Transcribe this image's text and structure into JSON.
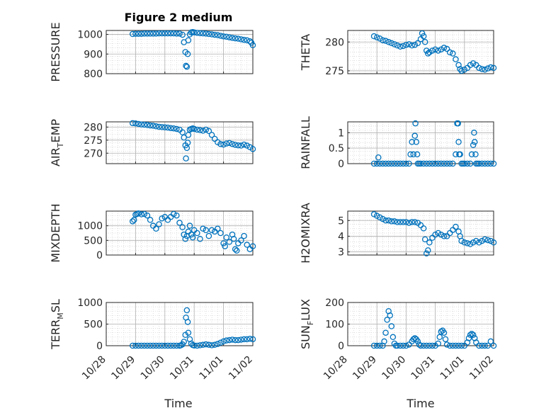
{
  "figure_title": "Figure 2 medium",
  "colors": {
    "marker": "#0072BD",
    "axis": "#262626",
    "grid": "#b0b0b0"
  },
  "chart_data": [
    {
      "type": "scatter",
      "ylabel": "PRESSURE",
      "ylim": [
        800,
        1020
      ],
      "yticks": [
        800,
        900,
        1000
      ],
      "xlim": [
        0,
        5
      ],
      "xticks": [],
      "grid": true,
      "x": [
        0.9,
        1.0,
        1.1,
        1.2,
        1.3,
        1.4,
        1.5,
        1.6,
        1.7,
        1.8,
        1.9,
        2.0,
        2.1,
        2.2,
        2.3,
        2.4,
        2.5,
        2.6,
        2.65,
        2.7,
        2.72,
        2.75,
        2.78,
        2.8,
        2.85,
        2.9,
        2.95,
        3.0,
        3.1,
        3.2,
        3.3,
        3.4,
        3.5,
        3.6,
        3.7,
        3.8,
        3.9,
        4.0,
        4.1,
        4.2,
        4.3,
        4.4,
        4.5,
        4.6,
        4.7,
        4.8,
        4.9,
        4.95,
        5.0
      ],
      "y": [
        1002,
        1003,
        1003,
        1003,
        1004,
        1004,
        1004,
        1004,
        1004,
        1005,
        1005,
        1005,
        1005,
        1005,
        1005,
        1004,
        1004,
        998,
        960,
        910,
        840,
        835,
        900,
        970,
        1000,
        1010,
        1012,
        1010,
        1008,
        1006,
        1005,
        1004,
        1002,
        1000,
        998,
        996,
        993,
        990,
        988,
        985,
        982,
        980,
        978,
        975,
        972,
        970,
        965,
        958,
        945
      ]
    },
    {
      "type": "scatter",
      "ylabel": "THETA",
      "ylim": [
        274.5,
        282
      ],
      "yticks": [
        275,
        280
      ],
      "xlim": [
        0,
        5
      ],
      "xticks": [],
      "grid": true,
      "x": [
        0.9,
        1.0,
        1.1,
        1.2,
        1.3,
        1.4,
        1.5,
        1.6,
        1.7,
        1.8,
        1.9,
        2.0,
        2.1,
        2.2,
        2.3,
        2.4,
        2.5,
        2.55,
        2.6,
        2.65,
        2.7,
        2.75,
        2.8,
        2.9,
        3.0,
        3.1,
        3.2,
        3.3,
        3.4,
        3.5,
        3.6,
        3.7,
        3.8,
        3.85,
        3.9,
        4.0,
        4.1,
        4.2,
        4.3,
        4.4,
        4.5,
        4.6,
        4.7,
        4.8,
        4.9,
        5.0
      ],
      "y": [
        281,
        280.8,
        280.6,
        280.3,
        280.2,
        280.0,
        279.8,
        279.6,
        279.4,
        279.2,
        279.3,
        279.5,
        279.6,
        279.4,
        279.5,
        279.8,
        280.5,
        281.5,
        281,
        280,
        278.5,
        278,
        278.2,
        278.5,
        278.7,
        278.5,
        278.7,
        279,
        278.8,
        278.2,
        278,
        277,
        276,
        275.3,
        275,
        275.2,
        275.5,
        276,
        276.3,
        276,
        275.5,
        275.3,
        275.2,
        275.4,
        275.6,
        275.5
      ]
    },
    {
      "type": "scatter",
      "ylabel": "AIR_TEMP",
      "ylim": [
        266,
        282
      ],
      "yticks": [
        270,
        275,
        280
      ],
      "xlim": [
        0,
        5
      ],
      "xticks": [],
      "grid": true,
      "x": [
        0.9,
        1.0,
        1.1,
        1.2,
        1.3,
        1.4,
        1.5,
        1.6,
        1.7,
        1.8,
        1.9,
        2.0,
        2.1,
        2.2,
        2.3,
        2.4,
        2.5,
        2.6,
        2.65,
        2.7,
        2.72,
        2.75,
        2.78,
        2.8,
        2.85,
        2.9,
        2.95,
        3.0,
        3.1,
        3.2,
        3.3,
        3.4,
        3.5,
        3.6,
        3.7,
        3.8,
        3.9,
        4.0,
        4.1,
        4.2,
        4.3,
        4.4,
        4.5,
        4.6,
        4.7,
        4.8,
        4.9,
        5.0
      ],
      "y": [
        281.5,
        281.4,
        281.2,
        281.0,
        280.9,
        280.8,
        280.6,
        280.5,
        280.3,
        280.1,
        280.0,
        279.9,
        279.8,
        279.6,
        279.5,
        279.3,
        279.0,
        278.0,
        276,
        273,
        268,
        272,
        274,
        277,
        279,
        279.3,
        279.5,
        279.3,
        279.0,
        278.8,
        278.6,
        279.0,
        278.5,
        277.0,
        275.5,
        274.2,
        273.5,
        273.3,
        273.7,
        273.9,
        273.5,
        273.2,
        273.0,
        272.9,
        273.3,
        272.9,
        272.3,
        271.6
      ]
    },
    {
      "type": "scatter",
      "ylabel": "RAINFALL",
      "ylim": [
        0,
        1.35
      ],
      "yticks": [
        0,
        0.5,
        1
      ],
      "xlim": [
        0,
        5
      ],
      "xticks": [],
      "grid": true,
      "x": [
        0.9,
        1.0,
        1.05,
        1.1,
        1.2,
        1.3,
        1.4,
        1.5,
        1.6,
        1.7,
        1.8,
        1.9,
        2.0,
        2.1,
        2.15,
        2.2,
        2.25,
        2.3,
        2.32,
        2.35,
        2.38,
        2.4,
        2.45,
        2.5,
        2.6,
        2.7,
        2.8,
        2.9,
        3.0,
        3.1,
        3.2,
        3.3,
        3.4,
        3.5,
        3.6,
        3.7,
        3.75,
        3.78,
        3.8,
        3.82,
        3.85,
        3.9,
        3.95,
        4.0,
        4.1,
        4.2,
        4.25,
        4.3,
        4.33,
        4.35,
        4.38,
        4.4,
        4.45,
        4.5,
        4.6,
        4.7,
        4.8,
        4.9,
        5.0
      ],
      "y": [
        0,
        0,
        0.2,
        0,
        0,
        0,
        0,
        0,
        0,
        0,
        0,
        0,
        0,
        0,
        0.3,
        0.7,
        0.3,
        0.9,
        1.3,
        0.7,
        0.3,
        0,
        0,
        0,
        0,
        0,
        0,
        0,
        0,
        0,
        0,
        0,
        0,
        0,
        0,
        0.3,
        1.3,
        1.3,
        0.7,
        0.3,
        0.3,
        0,
        0,
        0,
        0,
        0,
        0.3,
        0.6,
        1.0,
        0.7,
        0.3,
        0,
        0,
        0,
        0,
        0,
        0,
        0,
        0
      ]
    },
    {
      "type": "scatter",
      "ylabel": "MIXDEPTH",
      "ylim": [
        0,
        1500
      ],
      "yticks": [
        0,
        500,
        1000
      ],
      "xlim": [
        0,
        5
      ],
      "xticks": [],
      "grid": true,
      "x": [
        0.9,
        0.95,
        1.0,
        1.05,
        1.1,
        1.2,
        1.3,
        1.4,
        1.5,
        1.6,
        1.7,
        1.8,
        1.9,
        2.0,
        2.1,
        2.2,
        2.3,
        2.4,
        2.5,
        2.6,
        2.65,
        2.7,
        2.75,
        2.8,
        2.85,
        2.9,
        2.95,
        3.0,
        3.1,
        3.2,
        3.3,
        3.4,
        3.5,
        3.6,
        3.7,
        3.8,
        3.9,
        4.0,
        4.05,
        4.1,
        4.2,
        4.3,
        4.35,
        4.4,
        4.45,
        4.5,
        4.6,
        4.7,
        4.8,
        4.9,
        5.0
      ],
      "y": [
        1150,
        1200,
        1380,
        1400,
        1420,
        1390,
        1400,
        1350,
        1200,
        1000,
        900,
        1050,
        1250,
        1300,
        1200,
        1300,
        1400,
        1350,
        1100,
        950,
        700,
        550,
        650,
        800,
        1000,
        700,
        600,
        850,
        750,
        550,
        900,
        850,
        650,
        850,
        800,
        900,
        750,
        400,
        300,
        600,
        450,
        700,
        550,
        200,
        150,
        400,
        500,
        650,
        350,
        200,
        300
      ]
    },
    {
      "type": "scatter",
      "ylabel": "H2OMIXRA",
      "ylim": [
        2.8,
        5.6
      ],
      "yticks": [
        3,
        4,
        5
      ],
      "xlim": [
        0,
        5
      ],
      "xticks": [],
      "grid": true,
      "x": [
        0.9,
        1.0,
        1.1,
        1.2,
        1.3,
        1.4,
        1.5,
        1.6,
        1.7,
        1.8,
        1.9,
        2.0,
        2.1,
        2.2,
        2.3,
        2.4,
        2.5,
        2.6,
        2.65,
        2.7,
        2.75,
        2.8,
        2.9,
        3.0,
        3.1,
        3.2,
        3.3,
        3.4,
        3.5,
        3.6,
        3.7,
        3.8,
        3.85,
        3.9,
        4.0,
        4.1,
        4.2,
        4.3,
        4.4,
        4.5,
        4.6,
        4.7,
        4.8,
        4.9,
        5.0
      ],
      "y": [
        5.4,
        5.3,
        5.2,
        5.1,
        5.0,
        5.0,
        4.95,
        4.95,
        4.9,
        4.9,
        4.9,
        4.9,
        4.85,
        4.9,
        4.9,
        4.85,
        4.7,
        4.5,
        3.8,
        2.9,
        3.1,
        3.6,
        3.9,
        4.1,
        4.2,
        4.1,
        4.0,
        4.0,
        4.2,
        4.4,
        4.6,
        4.3,
        4.0,
        3.7,
        3.6,
        3.55,
        3.5,
        3.6,
        3.7,
        3.6,
        3.7,
        3.8,
        3.75,
        3.7,
        3.6
      ]
    },
    {
      "type": "scatter",
      "ylabel": "TERR_MSL",
      "ylim": [
        0,
        1000
      ],
      "yticks": [
        0,
        500,
        1000
      ],
      "xlim": [
        0,
        5
      ],
      "xticks": [],
      "grid": true,
      "x": [
        0.9,
        1.0,
        1.1,
        1.2,
        1.3,
        1.4,
        1.5,
        1.6,
        1.7,
        1.8,
        1.9,
        2.0,
        2.1,
        2.2,
        2.3,
        2.4,
        2.5,
        2.55,
        2.6,
        2.65,
        2.7,
        2.72,
        2.75,
        2.78,
        2.8,
        2.85,
        2.9,
        2.95,
        3.0,
        3.1,
        3.2,
        3.3,
        3.4,
        3.5,
        3.6,
        3.7,
        3.8,
        3.9,
        4.0,
        4.1,
        4.2,
        4.3,
        4.4,
        4.5,
        4.6,
        4.7,
        4.8,
        4.9,
        5.0
      ],
      "y": [
        0,
        0,
        0,
        0,
        0,
        0,
        0,
        0,
        0,
        0,
        0,
        0,
        0,
        0,
        0,
        0,
        0,
        10,
        30,
        90,
        250,
        650,
        820,
        550,
        300,
        150,
        50,
        15,
        5,
        0,
        10,
        20,
        30,
        20,
        10,
        20,
        40,
        70,
        100,
        120,
        130,
        140,
        130,
        130,
        140,
        150,
        150,
        160,
        150
      ]
    },
    {
      "type": "scatter",
      "ylabel": "SUN_FLUX",
      "ylim": [
        0,
        200
      ],
      "yticks": [
        0,
        100,
        200
      ],
      "xlim": [
        0,
        5
      ],
      "xticks": [
        "10/28",
        "10/29",
        "10/30",
        "10/31",
        "11/01",
        "11/02"
      ],
      "xlabel": "Time",
      "grid": true,
      "x": [
        0.9,
        1.0,
        1.1,
        1.2,
        1.25,
        1.3,
        1.35,
        1.4,
        1.45,
        1.5,
        1.55,
        1.6,
        1.65,
        1.7,
        1.8,
        1.9,
        2.0,
        2.1,
        2.2,
        2.25,
        2.3,
        2.35,
        2.4,
        2.45,
        2.5,
        2.6,
        2.7,
        2.8,
        2.9,
        3.0,
        3.1,
        3.15,
        3.2,
        3.25,
        3.3,
        3.35,
        3.4,
        3.5,
        3.6,
        3.7,
        3.8,
        3.9,
        4.0,
        4.1,
        4.15,
        4.2,
        4.25,
        4.3,
        4.35,
        4.4,
        4.5,
        4.6,
        4.7,
        4.8,
        4.9,
        5.0
      ],
      "y": [
        0,
        0,
        0,
        0,
        20,
        60,
        120,
        160,
        140,
        90,
        40,
        10,
        0,
        0,
        0,
        0,
        0,
        5,
        20,
        30,
        35,
        30,
        20,
        5,
        0,
        0,
        0,
        0,
        0,
        0,
        10,
        40,
        65,
        70,
        60,
        30,
        5,
        0,
        0,
        0,
        0,
        0,
        0,
        15,
        35,
        50,
        55,
        50,
        35,
        15,
        0,
        0,
        0,
        0,
        20,
        0
      ]
    }
  ]
}
